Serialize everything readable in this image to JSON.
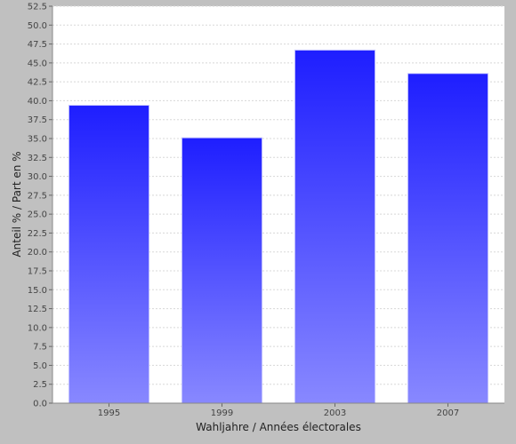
{
  "chart_data": {
    "type": "bar",
    "categories": [
      "1995",
      "1999",
      "2003",
      "2007"
    ],
    "values": [
      39.4,
      35.1,
      46.7,
      43.6
    ],
    "xlabel": "Wahljahre / Années électorales",
    "ylabel": "Anteil % / Part en %",
    "ylim": [
      0,
      52.5
    ],
    "ytick_step": 2.5,
    "ytick_labels": [
      "0.0",
      "2.5",
      "5.0",
      "7.5",
      "10.0",
      "12.5",
      "15.0",
      "17.5",
      "20.0",
      "22.5",
      "25.0",
      "27.5",
      "30.0",
      "32.5",
      "35.0",
      "37.5",
      "40.0",
      "42.5",
      "45.0",
      "47.5",
      "50.0",
      "52.5"
    ],
    "grid": true,
    "legend": "none",
    "colors": {
      "bar_top": "#1e1eff",
      "bar_bottom": "#8888ff",
      "plot_background": "#ffffff",
      "page_background": "#c0c0c0",
      "gridline": "#d8d8d8"
    }
  }
}
